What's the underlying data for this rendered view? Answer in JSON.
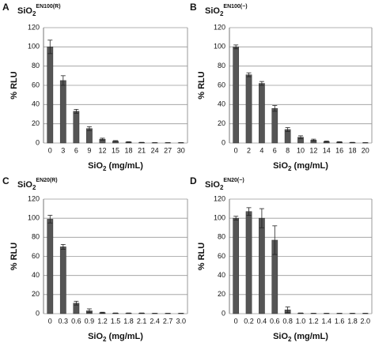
{
  "chart_data": [
    {
      "type": "bar",
      "panel": "A",
      "title": {
        "base": "SiO",
        "sub": "2",
        "sup": "EN100(R)"
      },
      "ylabel": "% RLU",
      "xlabel": {
        "base": "SiO",
        "sub": "2",
        "rest": " (mg/mL)"
      },
      "categories": [
        "0",
        "3",
        "6",
        "9",
        "12",
        "15",
        "18",
        "21",
        "24",
        "27",
        "30"
      ],
      "values": [
        100,
        65,
        33,
        15,
        4,
        2,
        1,
        0.5,
        0.3,
        0.3,
        0.3
      ],
      "errors": [
        7,
        5,
        2,
        2,
        1,
        0.5,
        0.3,
        0.2,
        0.1,
        0.1,
        0.1
      ],
      "color": "#555555",
      "ylim": [
        0,
        120
      ],
      "yticks": [
        0,
        20,
        40,
        60,
        80,
        100,
        120
      ],
      "grid": true
    },
    {
      "type": "bar",
      "panel": "B",
      "title": {
        "base": "SiO",
        "sub": "2",
        "sup": "EN100(−)"
      },
      "ylabel": "% RLU",
      "xlabel": {
        "base": "SiO",
        "sub": "2",
        "rest": " (mg/mL)"
      },
      "categories": [
        "0",
        "2",
        "4",
        "6",
        "8",
        "10",
        "12",
        "14",
        "16",
        "18",
        "20"
      ],
      "values": [
        100,
        71,
        62,
        36,
        14,
        6,
        3,
        1.5,
        1,
        0.5,
        0.3
      ],
      "errors": [
        2,
        2,
        2,
        3,
        2,
        1.5,
        1,
        0.5,
        0.3,
        0.2,
        0.1
      ],
      "color": "#555555",
      "ylim": [
        0,
        120
      ],
      "yticks": [
        0,
        20,
        40,
        60,
        80,
        100,
        120
      ],
      "grid": true
    },
    {
      "type": "bar",
      "panel": "C",
      "title": {
        "base": "SiO",
        "sub": "2",
        "sup": "EN20(R)"
      },
      "ylabel": "% RLU",
      "xlabel": {
        "base": "SiO",
        "sub": "2",
        "rest": " (mg/mL)"
      },
      "categories": [
        "0",
        "0.3",
        "0.6",
        "0.9",
        "1.2",
        "1.5",
        "1.8",
        "2.1",
        "2.4",
        "2.7",
        "3.0"
      ],
      "values": [
        99,
        70,
        11,
        3,
        1,
        0.5,
        0.5,
        0.5,
        0.3,
        0.3,
        0.3
      ],
      "errors": [
        4,
        2.5,
        2,
        2,
        0.5,
        0.2,
        0.2,
        0.2,
        0.1,
        0.1,
        0.1
      ],
      "color": "#555555",
      "ylim": [
        0,
        120
      ],
      "yticks": [
        0,
        20,
        40,
        60,
        80,
        100,
        120
      ],
      "grid": true
    },
    {
      "type": "bar",
      "panel": "D",
      "title": {
        "base": "SiO",
        "sub": "2",
        "sup": "EN20(−)"
      },
      "ylabel": "% RLU",
      "xlabel": {
        "base": "SiO",
        "sub": "2",
        "rest": " (mg/mL)"
      },
      "categories": [
        "0",
        "0.2",
        "0.4",
        "0.6",
        "0.8",
        "1.0",
        "1.2",
        "1.4",
        "1.6",
        "1.8",
        "2.0"
      ],
      "values": [
        100,
        107,
        100,
        77,
        4,
        0.5,
        0.3,
        0.3,
        0.3,
        0.3,
        0.3
      ],
      "errors": [
        2,
        4,
        10,
        15,
        3,
        0.2,
        0.1,
        0.1,
        0.1,
        0.1,
        0.1
      ],
      "color": "#555555",
      "ylim": [
        0,
        120
      ],
      "yticks": [
        0,
        20,
        40,
        60,
        80,
        100,
        120
      ],
      "grid": true
    }
  ]
}
